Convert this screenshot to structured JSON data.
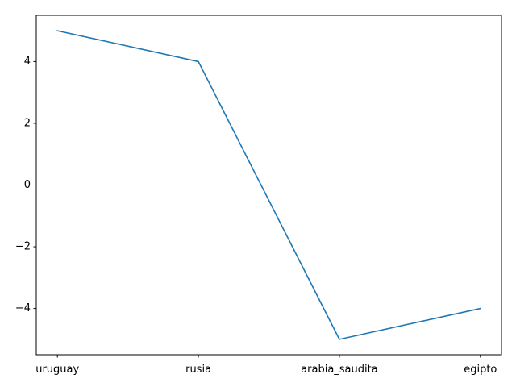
{
  "chart_data": {
    "type": "line",
    "title": "",
    "xlabel": "",
    "ylabel": "",
    "categories": [
      "uruguay",
      "rusia",
      "arabia_saudita",
      "egipto"
    ],
    "series": [
      {
        "values": [
          5,
          4,
          -5,
          -4
        ],
        "color": "#1f77b4"
      }
    ],
    "ylim": [
      -5.5,
      5.5
    ],
    "yticks": [
      -4,
      -2,
      0,
      2,
      4
    ],
    "ytick_labels": [
      "−4",
      "−2",
      "0",
      "2",
      "4"
    ],
    "grid": false,
    "legend": "none"
  }
}
